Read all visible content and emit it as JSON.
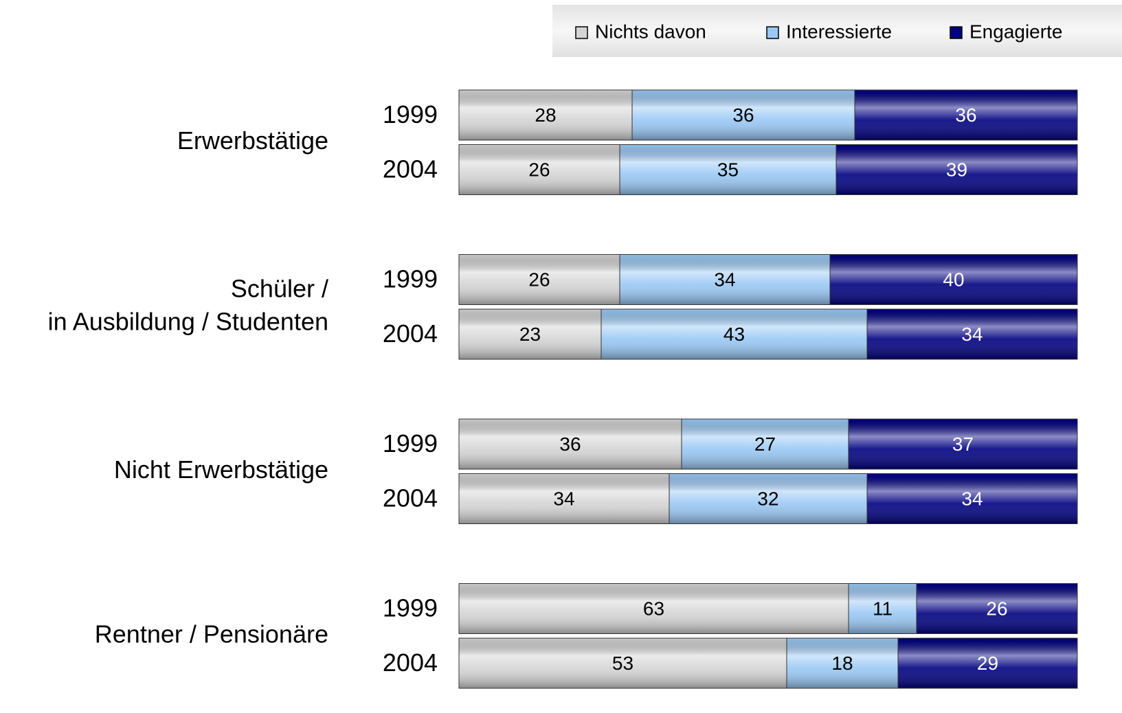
{
  "chart_data": {
    "type": "bar",
    "orientation": "horizontal",
    "stacked": true,
    "groups": [
      [
        "Erwerbstätige"
      ],
      [
        "Schüler /",
        "in Ausbildung / Studenten"
      ],
      [
        "Nicht Erwerbstätige"
      ],
      [
        "Rentner / Pensionäre"
      ]
    ],
    "categories": [
      "1999",
      "2004",
      "1999",
      "2004",
      "1999",
      "2004",
      "1999",
      "2004"
    ],
    "series": [
      {
        "name": "Nichts davon",
        "color": "#d4d4d4",
        "values": [
          28,
          26,
          26,
          23,
          36,
          34,
          63,
          53
        ]
      },
      {
        "name": "Interessierte",
        "color": "#99c8f5",
        "values": [
          36,
          35,
          34,
          43,
          27,
          32,
          11,
          18
        ]
      },
      {
        "name": "Engagierte",
        "color": "#000080",
        "values": [
          36,
          39,
          40,
          34,
          37,
          34,
          26,
          29
        ]
      }
    ],
    "xlim": [
      0,
      100
    ],
    "legend": "top-right"
  }
}
